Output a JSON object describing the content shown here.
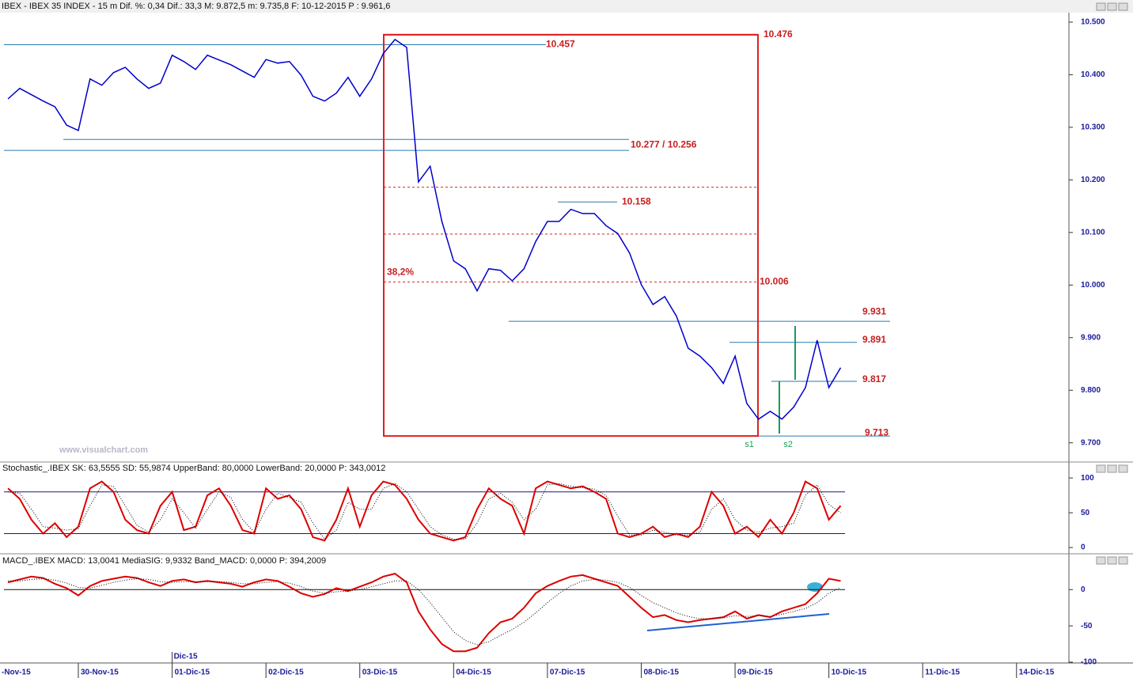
{
  "header": "IBEX - IBEX 35 INDEX - 15 m  Dif. %: 0,34  Dif.: 33,3  M: 9.872,5  m: 9.735,8  F: 10-12-2015  P : 9.961,6",
  "watermark": "www.visualchart.com",
  "x_axis": {
    "xlim": [
      0.165,
      11.55
    ],
    "xticks": [
      {
        "value": 0,
        "label": "-Nov-15"
      },
      {
        "value": 1,
        "label": "30-Nov-15"
      },
      {
        "value": 2,
        "label": "01-Dic-15"
      },
      {
        "value": 3,
        "label": "02-Dic-15"
      },
      {
        "value": 4,
        "label": "03-Dic-15"
      },
      {
        "value": 5,
        "label": "04-Dic-15"
      },
      {
        "value": 6,
        "label": "07-Dic-15"
      },
      {
        "value": 7,
        "label": "08-Dic-15"
      },
      {
        "value": 8,
        "label": "09-Dic-15"
      },
      {
        "value": 9,
        "label": "10-Dic-15"
      },
      {
        "value": 10,
        "label": "11-Dic-15"
      },
      {
        "value": 11,
        "label": "14-Dic-15"
      }
    ],
    "month_tick": {
      "value": 2,
      "label": "Dic-15"
    }
  },
  "chart_data": [
    {
      "type": "line",
      "x": [
        0.25,
        0.375,
        0.5,
        0.625,
        0.75,
        0.875,
        1,
        1.125,
        1.25,
        1.375,
        1.5,
        1.625,
        1.75,
        1.875,
        2,
        2.125,
        2.25,
        2.375,
        2.5,
        2.625,
        2.75,
        2.875,
        3,
        3.125,
        3.25,
        3.375,
        3.5,
        3.625,
        3.75,
        3.875,
        4,
        4.125,
        4.25,
        4.375,
        4.5,
        4.625,
        4.75,
        4.875,
        5,
        5.125,
        5.25,
        5.375,
        5.5,
        5.625,
        5.75,
        5.875,
        6,
        6.125,
        6.25,
        6.375,
        6.5,
        6.625,
        6.75,
        6.875,
        7,
        7.125,
        7.25,
        7.375,
        7.5,
        7.625,
        7.75,
        7.875,
        8,
        8.125,
        8.25,
        8.375,
        8.5,
        8.625,
        8.75,
        8.875,
        9,
        9.125
      ],
      "series": [
        {
          "color": "#0000cc",
          "values": [
            10354,
            10374,
            10362,
            10350,
            10339,
            10304,
            10294,
            10392,
            10380,
            10404,
            10414,
            10392,
            10374,
            10384,
            10437,
            10425,
            10410,
            10437,
            10428,
            10419,
            10407,
            10395,
            10429,
            10422,
            10425,
            10399,
            10359,
            10350,
            10365,
            10395,
            10359,
            10392,
            10440,
            10467,
            10452,
            10196,
            10226,
            10121,
            10046,
            10031,
            9989,
            10031,
            10028,
            10008,
            10031,
            10083,
            10121,
            10121,
            10144,
            10136,
            10136,
            10113,
            10098,
            10061,
            10001,
            9963,
            9978,
            9941,
            9880,
            9865,
            9843,
            9813,
            9865,
            9775,
            9745,
            9760,
            9745,
            9768,
            9805,
            9895,
            9805,
            9843
          ]
        }
      ],
      "ylim": [
        9665,
        10518
      ],
      "yticks": [
        {
          "value": 10500,
          "label": "10.500"
        },
        {
          "value": 10400,
          "label": "10.400"
        },
        {
          "value": 10300,
          "label": "10.300"
        },
        {
          "value": 10200,
          "label": "10.200"
        },
        {
          "value": 10100,
          "label": "10.100"
        },
        {
          "value": 10000,
          "label": "10.000"
        },
        {
          "value": 9900,
          "label": "9.900"
        },
        {
          "value": 9800,
          "label": "9.800"
        },
        {
          "value": 9700,
          "label": "9.700"
        }
      ],
      "annotations": [
        {
          "label": "10.457",
          "value": 10457
        },
        {
          "label": "10.476",
          "value": 10476
        },
        {
          "label": "10.277 / 10.256",
          "values": [
            10277,
            10256
          ]
        },
        {
          "label": "10.158",
          "value": 10158
        },
        {
          "label": "10.006",
          "value": 10006
        },
        {
          "label": "9.931",
          "value": 9931
        },
        {
          "label": "9.891",
          "value": 9891
        },
        {
          "label": "9.817",
          "value": 9817
        },
        {
          "label": "9.713",
          "value": 9713
        }
      ],
      "fib_levels": [
        10186,
        10097
      ],
      "fib_label": "38,2%",
      "signals": [
        "s1",
        "s2"
      ]
    },
    {
      "type": "line",
      "title": "Stochastic_.IBEX SK: 63,5555  SD: 55,9874  UpperBand: 80,0000  LowerBand: 20,0000  P: 343,0012",
      "x": [
        0.25,
        0.375,
        0.5,
        0.625,
        0.75,
        0.875,
        1,
        1.125,
        1.25,
        1.375,
        1.5,
        1.625,
        1.75,
        1.875,
        2,
        2.125,
        2.25,
        2.375,
        2.5,
        2.625,
        2.75,
        2.875,
        3,
        3.125,
        3.25,
        3.375,
        3.5,
        3.625,
        3.75,
        3.875,
        4,
        4.125,
        4.25,
        4.375,
        4.5,
        4.625,
        4.75,
        4.875,
        5,
        5.125,
        5.25,
        5.375,
        5.5,
        5.625,
        5.75,
        5.875,
        6,
        6.125,
        6.25,
        6.375,
        6.5,
        6.625,
        6.75,
        6.875,
        7,
        7.125,
        7.25,
        7.375,
        7.5,
        7.625,
        7.75,
        7.875,
        8,
        8.125,
        8.25,
        8.375,
        8.5,
        8.625,
        8.75,
        8.875,
        9,
        9.125
      ],
      "series": [
        {
          "color": "#dd0000",
          "values": [
            85,
            70,
            40,
            20,
            35,
            15,
            30,
            85,
            95,
            80,
            40,
            25,
            20,
            60,
            80,
            25,
            30,
            75,
            85,
            60,
            25,
            20,
            85,
            70,
            75,
            55,
            15,
            10,
            40,
            85,
            30,
            75,
            95,
            90,
            70,
            40,
            20,
            15,
            10,
            15,
            55,
            85,
            70,
            60,
            20,
            85,
            95,
            90,
            85,
            88,
            80,
            70,
            20,
            15,
            20,
            30,
            15,
            20,
            15,
            30,
            80,
            60,
            20,
            30,
            15,
            40,
            20,
            50,
            95,
            85,
            40,
            60
          ]
        },
        {
          "color": "#000000",
          "values": [
            80,
            78,
            55,
            30,
            28,
            25,
            27,
            60,
            90,
            88,
            60,
            32,
            22,
            40,
            70,
            50,
            28,
            55,
            80,
            72,
            40,
            22,
            55,
            78,
            72,
            65,
            35,
            12,
            25,
            65,
            55,
            55,
            85,
            92,
            80,
            55,
            30,
            18,
            12,
            12,
            35,
            70,
            78,
            65,
            40,
            55,
            90,
            92,
            88,
            86,
            84,
            75,
            45,
            18,
            18,
            25,
            22,
            18,
            18,
            22,
            55,
            70,
            40,
            25,
            22,
            28,
            30,
            35,
            75,
            90,
            62,
            50
          ]
        }
      ],
      "bands": [
        80,
        20
      ],
      "ylim": [
        -9,
        107
      ],
      "yticks": [
        100,
        50,
        0
      ]
    },
    {
      "type": "line",
      "title": "MACD_.IBEX MACD: 13,0041  MediaSIG: 9,9332  Band_MACD: 0,0000  P: 394,2009",
      "x": [
        0.25,
        0.375,
        0.5,
        0.625,
        0.75,
        0.875,
        1,
        1.125,
        1.25,
        1.375,
        1.5,
        1.625,
        1.75,
        1.875,
        2,
        2.125,
        2.25,
        2.375,
        2.5,
        2.625,
        2.75,
        2.875,
        3,
        3.125,
        3.25,
        3.375,
        3.5,
        3.625,
        3.75,
        3.875,
        4,
        4.125,
        4.25,
        4.375,
        4.5,
        4.625,
        4.75,
        4.875,
        5,
        5.125,
        5.25,
        5.375,
        5.5,
        5.625,
        5.75,
        5.875,
        6,
        6.125,
        6.25,
        6.375,
        6.5,
        6.625,
        6.75,
        6.875,
        7,
        7.125,
        7.25,
        7.375,
        7.5,
        7.625,
        7.75,
        7.875,
        8,
        8.125,
        8.25,
        8.375,
        8.5,
        8.625,
        8.75,
        8.875,
        9,
        9.125
      ],
      "series": [
        {
          "color": "#dd0000",
          "values": [
            10,
            14,
            18,
            16,
            8,
            2,
            -8,
            5,
            12,
            15,
            18,
            16,
            10,
            5,
            12,
            14,
            10,
            12,
            10,
            8,
            4,
            10,
            14,
            12,
            4,
            -5,
            -10,
            -6,
            2,
            -2,
            4,
            10,
            18,
            22,
            10,
            -30,
            -55,
            -75,
            -85,
            -85,
            -80,
            -60,
            -45,
            -40,
            -25,
            -5,
            5,
            12,
            18,
            20,
            15,
            10,
            5,
            -10,
            -25,
            -38,
            -35,
            -42,
            -45,
            -42,
            -40,
            -38,
            -30,
            -40,
            -35,
            -38,
            -30,
            -25,
            -20,
            -5,
            15,
            12
          ]
        },
        {
          "color": "#000000",
          "values": [
            12,
            12,
            14,
            15,
            13,
            9,
            3,
            2,
            6,
            10,
            13,
            15,
            14,
            11,
            10,
            11,
            11,
            11,
            11,
            10,
            8,
            8,
            10,
            11,
            9,
            4,
            -2,
            -5,
            -3,
            -2,
            0,
            4,
            8,
            12,
            12,
            0,
            -18,
            -38,
            -58,
            -70,
            -76,
            -72,
            -63,
            -55,
            -45,
            -32,
            -18,
            -5,
            5,
            12,
            14,
            13,
            10,
            3,
            -8,
            -18,
            -25,
            -32,
            -37,
            -40,
            -40,
            -39,
            -36,
            -37,
            -36,
            -37,
            -34,
            -30,
            -26,
            -18,
            -5,
            3
          ]
        }
      ],
      "band": 0,
      "ylim": [
        -100,
        33
      ],
      "yticks": [
        0,
        -50,
        -100
      ]
    }
  ]
}
